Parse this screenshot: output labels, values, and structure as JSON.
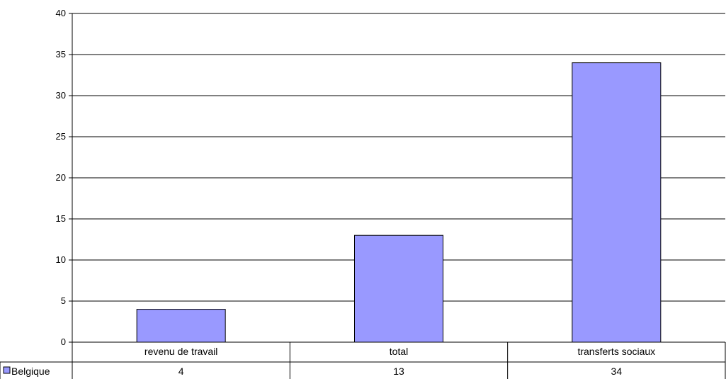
{
  "chart_data": {
    "type": "bar",
    "categories": [
      "revenu de travail",
      "total",
      "transferts sociaux"
    ],
    "series": [
      {
        "name": "Belgique",
        "values": [
          4,
          13,
          34
        ],
        "color": "#9999FF"
      }
    ],
    "ylim": [
      0,
      40
    ],
    "yticks": [
      "0",
      "5",
      "10",
      "15",
      "20",
      "25",
      "30",
      "35",
      "40"
    ],
    "grid": true,
    "legend": "data-table-left",
    "data_table": true
  }
}
